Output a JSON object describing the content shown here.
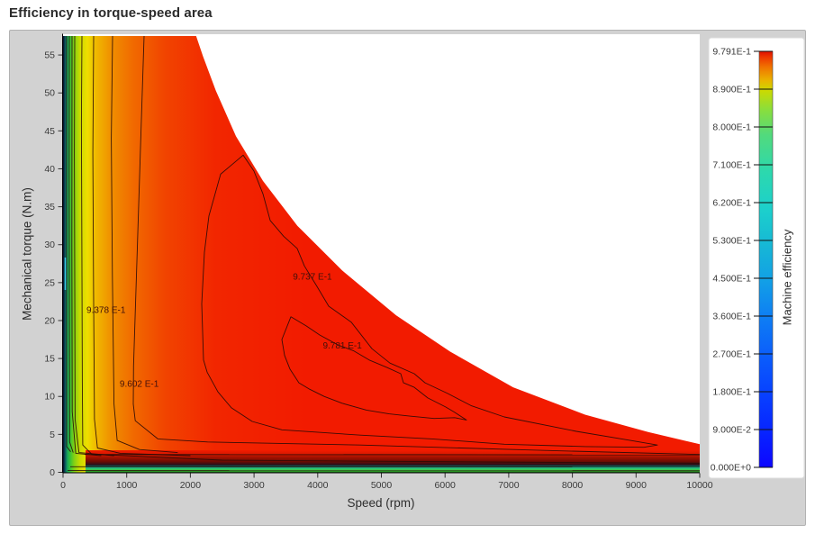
{
  "title": "Efficiency in torque-speed area",
  "colors": {
    "panel_bg": "#d2d2d2",
    "plot_bg": "#ffffff",
    "surface_red": "#f21b00",
    "contour_line": "#2a0b06",
    "contour_label": "#43100a",
    "axis_text": "#3a3a3a",
    "title_text": "#2b2b2b"
  },
  "chart_data": {
    "type": "heatmap",
    "subtype": "filled-contour-efficiency-map",
    "title": "Efficiency in torque-speed area",
    "xlabel": "Speed (rpm)",
    "ylabel": "Mechanical torque (N.m)",
    "xlim": [
      0,
      10000
    ],
    "ylim": [
      0,
      57.5
    ],
    "x_ticks": [
      0,
      1000,
      2000,
      3000,
      4000,
      5000,
      6000,
      7000,
      8000,
      9000,
      10000
    ],
    "y_ticks": [
      0,
      5,
      10,
      15,
      20,
      25,
      30,
      35,
      40,
      45,
      50,
      55
    ],
    "grid": false,
    "colorbar": {
      "label": "Machine efficiency",
      "min": 0.0,
      "max": 0.9791,
      "tick_labels_top_to_bottom": [
        "9.791E-1",
        "8.900E-1",
        "8.000E-1",
        "7.100E-1",
        "6.200E-1",
        "5.300E-1",
        "4.500E-1",
        "3.600E-1",
        "2.700E-1",
        "1.800E-1",
        "9.000E-2",
        "0.000E+0"
      ],
      "gradient_bottom_to_top": [
        [
          0.0,
          "#0d06ff"
        ],
        [
          0.09,
          "#0726ff"
        ],
        [
          0.18,
          "#0842ff"
        ],
        [
          0.27,
          "#0b5efb"
        ],
        [
          0.36,
          "#0e7ef4"
        ],
        [
          0.45,
          "#12a0e6"
        ],
        [
          0.53,
          "#16b6d6"
        ],
        [
          0.62,
          "#1cd0cc"
        ],
        [
          0.71,
          "#2cd8ae"
        ],
        [
          0.8,
          "#52da7c"
        ],
        [
          0.86,
          "#8ade3c"
        ],
        [
          0.905,
          "#cada02"
        ],
        [
          0.93,
          "#eab400"
        ],
        [
          0.96,
          "#f07800"
        ],
        [
          0.985,
          "#ee3a00"
        ],
        [
          1.0,
          "#e01000"
        ]
      ]
    },
    "envelope_speed_torque": [
      [
        0,
        57.5
      ],
      [
        2090,
        57.5
      ],
      [
        2200,
        54.8
      ],
      [
        2400,
        50.3
      ],
      [
        2715,
        44.3
      ],
      [
        3140,
        38.4
      ],
      [
        3680,
        32.5
      ],
      [
        4385,
        26.6
      ],
      [
        5230,
        20.7
      ],
      [
        6080,
        15.9
      ],
      [
        7070,
        11.2
      ],
      [
        8200,
        7.6
      ],
      [
        9190,
        5.3
      ],
      [
        10000,
        3.7
      ],
      [
        10000,
        0
      ],
      [
        0,
        0
      ]
    ],
    "surface_gradient_left_to_right": [
      [
        0.0,
        "#06062a"
      ],
      [
        0.0035,
        "#0b5a5e"
      ],
      [
        0.007,
        "#1aa85a"
      ],
      [
        0.011,
        "#36c238"
      ],
      [
        0.017,
        "#7ed016"
      ],
      [
        0.026,
        "#c6da00"
      ],
      [
        0.038,
        "#eede00"
      ],
      [
        0.052,
        "#f0b800"
      ],
      [
        0.075,
        "#f09000"
      ],
      [
        0.11,
        "#f16a00"
      ],
      [
        0.16,
        "#f14400"
      ],
      [
        0.24,
        "#f22600"
      ],
      [
        0.38,
        "#f21b00"
      ],
      [
        1.0,
        "#f21b00"
      ]
    ],
    "bottom_band_gradient_top_to_bottom": [
      [
        0.0,
        "#f21b00"
      ],
      [
        0.16,
        "#da1a00"
      ],
      [
        0.3,
        "#a81200"
      ],
      [
        0.52,
        "#6a0c03"
      ],
      [
        0.66,
        "#26101c"
      ],
      [
        0.74,
        "#0d7a6a"
      ],
      [
        0.8,
        "#22bc8a"
      ],
      [
        0.88,
        "#3cca4e"
      ],
      [
        0.96,
        "#2fae2a"
      ],
      [
        1.0,
        "#156a16"
      ]
    ],
    "contours": [
      {
        "level": "",
        "closed": false,
        "points": [
          [
            57,
            57.5
          ],
          [
            57,
            3.4
          ],
          [
            120,
            2.7
          ]
        ]
      },
      {
        "level": "",
        "closed": false,
        "points": [
          [
            99,
            57.5
          ],
          [
            96,
            40
          ],
          [
            99,
            22
          ],
          [
            103,
            4
          ],
          [
            160,
            2.6
          ]
        ]
      },
      {
        "level": "",
        "closed": false,
        "points": [
          [
            141,
            57.5
          ],
          [
            138,
            30
          ],
          [
            144,
            8
          ],
          [
            200,
            2.5
          ],
          [
            600,
            2.2
          ]
        ]
      },
      {
        "level": "",
        "closed": false,
        "points": [
          [
            184,
            57.5
          ],
          [
            178,
            42
          ],
          [
            184,
            25
          ],
          [
            190,
            7
          ],
          [
            250,
            2.6
          ],
          [
            800,
            2.2
          ]
        ]
      },
      {
        "level": "9.378 E-1",
        "label_at": [
          368,
          21.0
        ],
        "closed": false,
        "points": [
          [
            297,
            57.5
          ],
          [
            288,
            46
          ],
          [
            296,
            30
          ],
          [
            303,
            12
          ],
          [
            310,
            3.6
          ],
          [
            450,
            2.4
          ],
          [
            2500,
            1.6
          ],
          [
            6000,
            1.4
          ],
          [
            10000,
            1.2
          ]
        ]
      },
      {
        "level": "",
        "closed": false,
        "points": [
          [
            481,
            57.5
          ],
          [
            468,
            42
          ],
          [
            480,
            24
          ],
          [
            494,
            7
          ],
          [
            540,
            3.2
          ],
          [
            900,
            2.5
          ],
          [
            2000,
            2.2
          ]
        ]
      },
      {
        "level": "",
        "closed": false,
        "points": [
          [
            778,
            57.5
          ],
          [
            758,
            44
          ],
          [
            775,
            26
          ],
          [
            800,
            9
          ],
          [
            850,
            4.2
          ],
          [
            1200,
            3.0
          ],
          [
            1800,
            2.6
          ]
        ]
      },
      {
        "level": "9.602 E-1",
        "label_at": [
          890,
          11.3
        ],
        "closed": false,
        "points": [
          [
            1273,
            57.5
          ],
          [
            1225,
            45
          ],
          [
            1168,
            30
          ],
          [
            1108,
            14
          ],
          [
            1103,
            9
          ],
          [
            1135,
            6.8
          ],
          [
            1490,
            4.4
          ],
          [
            2270,
            4.0
          ],
          [
            4670,
            3.6
          ],
          [
            7500,
            2.9
          ],
          [
            10000,
            2.35
          ]
        ]
      },
      {
        "level": "9.737 E-1",
        "label_at": [
          3610,
          25.4
        ],
        "closed": true,
        "points": [
          [
            2829,
            41.8
          ],
          [
            2475,
            39.3
          ],
          [
            2291,
            33.8
          ],
          [
            2221,
            29.0
          ],
          [
            2178,
            22.2
          ],
          [
            2206,
            14.8
          ],
          [
            2263,
            13.2
          ],
          [
            2433,
            10.6
          ],
          [
            2645,
            8.5
          ],
          [
            2970,
            6.7
          ],
          [
            3437,
            5.6
          ],
          [
            4667,
            4.9
          ],
          [
            5799,
            4.4
          ],
          [
            6931,
            3.7
          ],
          [
            8203,
            3.4
          ],
          [
            9123,
            3.3
          ],
          [
            9335,
            3.6
          ],
          [
            8911,
            4.2
          ],
          [
            8062,
            5.4
          ],
          [
            6931,
            7.3
          ],
          [
            6407,
            8.8
          ],
          [
            6039,
            10.4
          ],
          [
            5686,
            11.8
          ],
          [
            5516,
            13.0
          ],
          [
            5134,
            14.4
          ],
          [
            4851,
            16.3
          ],
          [
            4526,
            19.8
          ],
          [
            4172,
            21.9
          ],
          [
            3989,
            24.5
          ],
          [
            3791,
            27.2
          ],
          [
            3678,
            29.5
          ],
          [
            3465,
            31.1
          ],
          [
            3253,
            33.2
          ],
          [
            3140,
            36.7
          ],
          [
            2998,
            39.7
          ]
        ]
      },
      {
        "level": "9.781 E-1",
        "label_at": [
          4080,
          16.3
        ],
        "closed": true,
        "points": [
          [
            3578,
            20.5
          ],
          [
            3437,
            17.5
          ],
          [
            3479,
            15.4
          ],
          [
            3564,
            13.6
          ],
          [
            3705,
            11.8
          ],
          [
            3861,
            11.0
          ],
          [
            4101,
            10.0
          ],
          [
            4384,
            9.1
          ],
          [
            4766,
            8.2
          ],
          [
            5120,
            7.7
          ],
          [
            5445,
            7.4
          ],
          [
            5827,
            7.1
          ],
          [
            6152,
            7.2
          ],
          [
            6336,
            6.9
          ],
          [
            6152,
            7.9
          ],
          [
            6011,
            8.6
          ],
          [
            5728,
            9.8
          ],
          [
            5516,
            11.2
          ],
          [
            5346,
            11.8
          ],
          [
            5304,
            13.0
          ],
          [
            5092,
            13.8
          ],
          [
            4809,
            14.8
          ],
          [
            4568,
            16.0
          ],
          [
            4314,
            16.8
          ],
          [
            4031,
            18.1
          ],
          [
            3819,
            19.3
          ]
        ]
      },
      {
        "level": "",
        "closed": false,
        "points": [
          [
            340,
            2.35
          ],
          [
            10000,
            2.3
          ]
        ]
      },
      {
        "level": "",
        "closed": false,
        "points": [
          [
            113,
            0.73
          ],
          [
            10000,
            0.7
          ]
        ]
      },
      {
        "level": "",
        "closed": false,
        "points": [
          [
            71,
            0.22
          ],
          [
            10000,
            0.2
          ]
        ]
      }
    ]
  }
}
